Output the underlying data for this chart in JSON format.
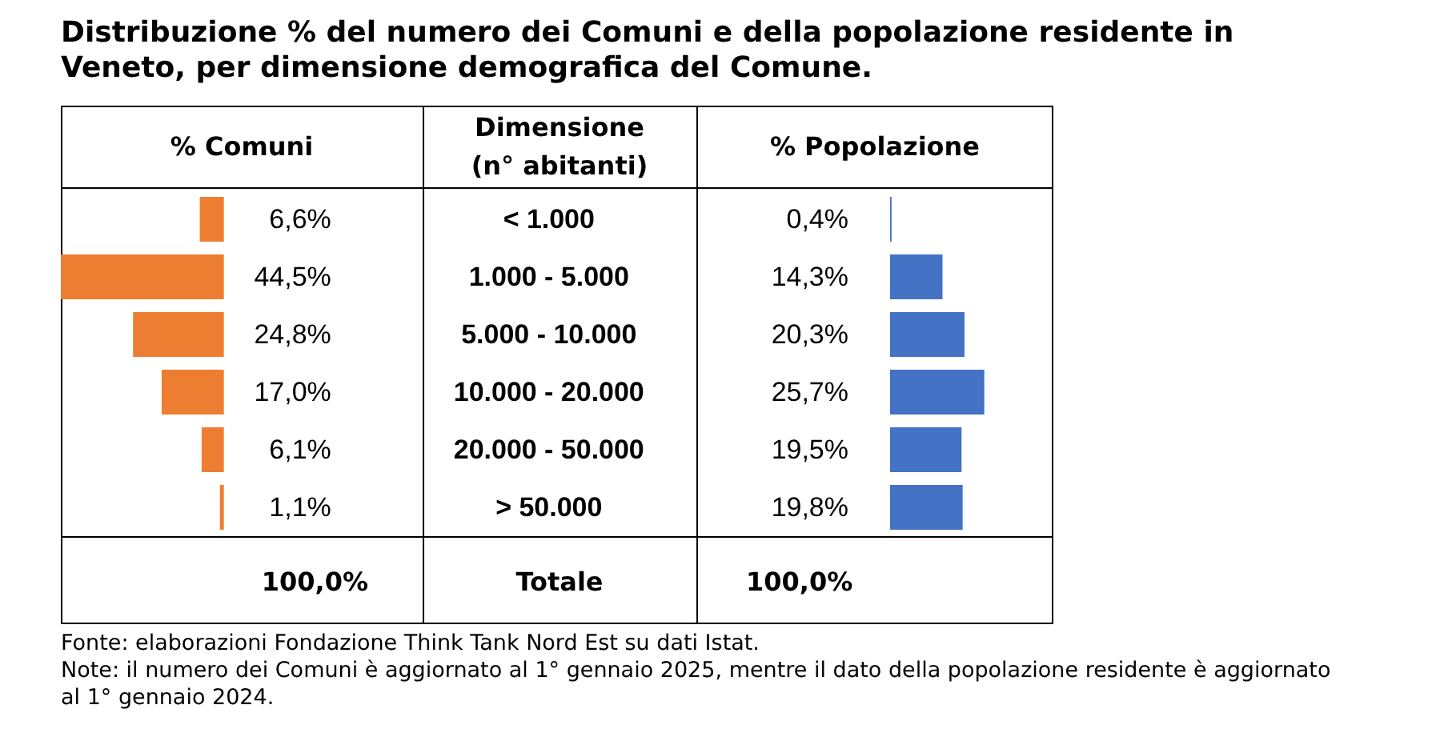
{
  "chart_data": [
    {
      "type": "bar",
      "orientation": "horizontal",
      "title": "Distribuzione % del numero dei Comuni e della popolazione residente in Veneto, per dimensione demografica del Comune.",
      "xlabel": "% Comuni",
      "ylabel": "Dimensione (n° abitanti)",
      "categories": [
        "< 1.000",
        "1.000 - 5.000",
        "5.000 - 10.000",
        "10.000 - 20.000",
        "20.000 - 50.000",
        "> 50.000"
      ],
      "values": [
        6.6,
        44.5,
        24.8,
        17.0,
        6.1,
        1.1
      ],
      "color": "#ed7d31",
      "value_labels": [
        "6,6%",
        "44,5%",
        "24,8%",
        "17,0%",
        "6,1%",
        "1,1%"
      ],
      "tick_labels": "y",
      "annotations": [
        "100,0%",
        "Totale"
      ]
    },
    {
      "type": "bar",
      "orientation": "horizontal",
      "xlabel": "% Popolazione",
      "values": [
        0.4,
        14.3,
        20.3,
        25.7,
        19.5,
        19.8
      ],
      "color": "#4472c4",
      "value_labels": [
        "0,4%",
        "14,3%",
        "20,3%",
        "25,7%",
        "19,5%",
        "19,8%"
      ],
      "tick_labels": false,
      "annotations": [
        "100,0%",
        "Fonte: elaborazioni Fondazione Think Tank Nord Est su dati Istat.",
        "Note: il numero dei Comuni è aggiornato al 1° gennaio 2025, mentre il dato della popolazione residente è aggiornato al 1° gennaio 2024."
      ]
    }
  ]
}
